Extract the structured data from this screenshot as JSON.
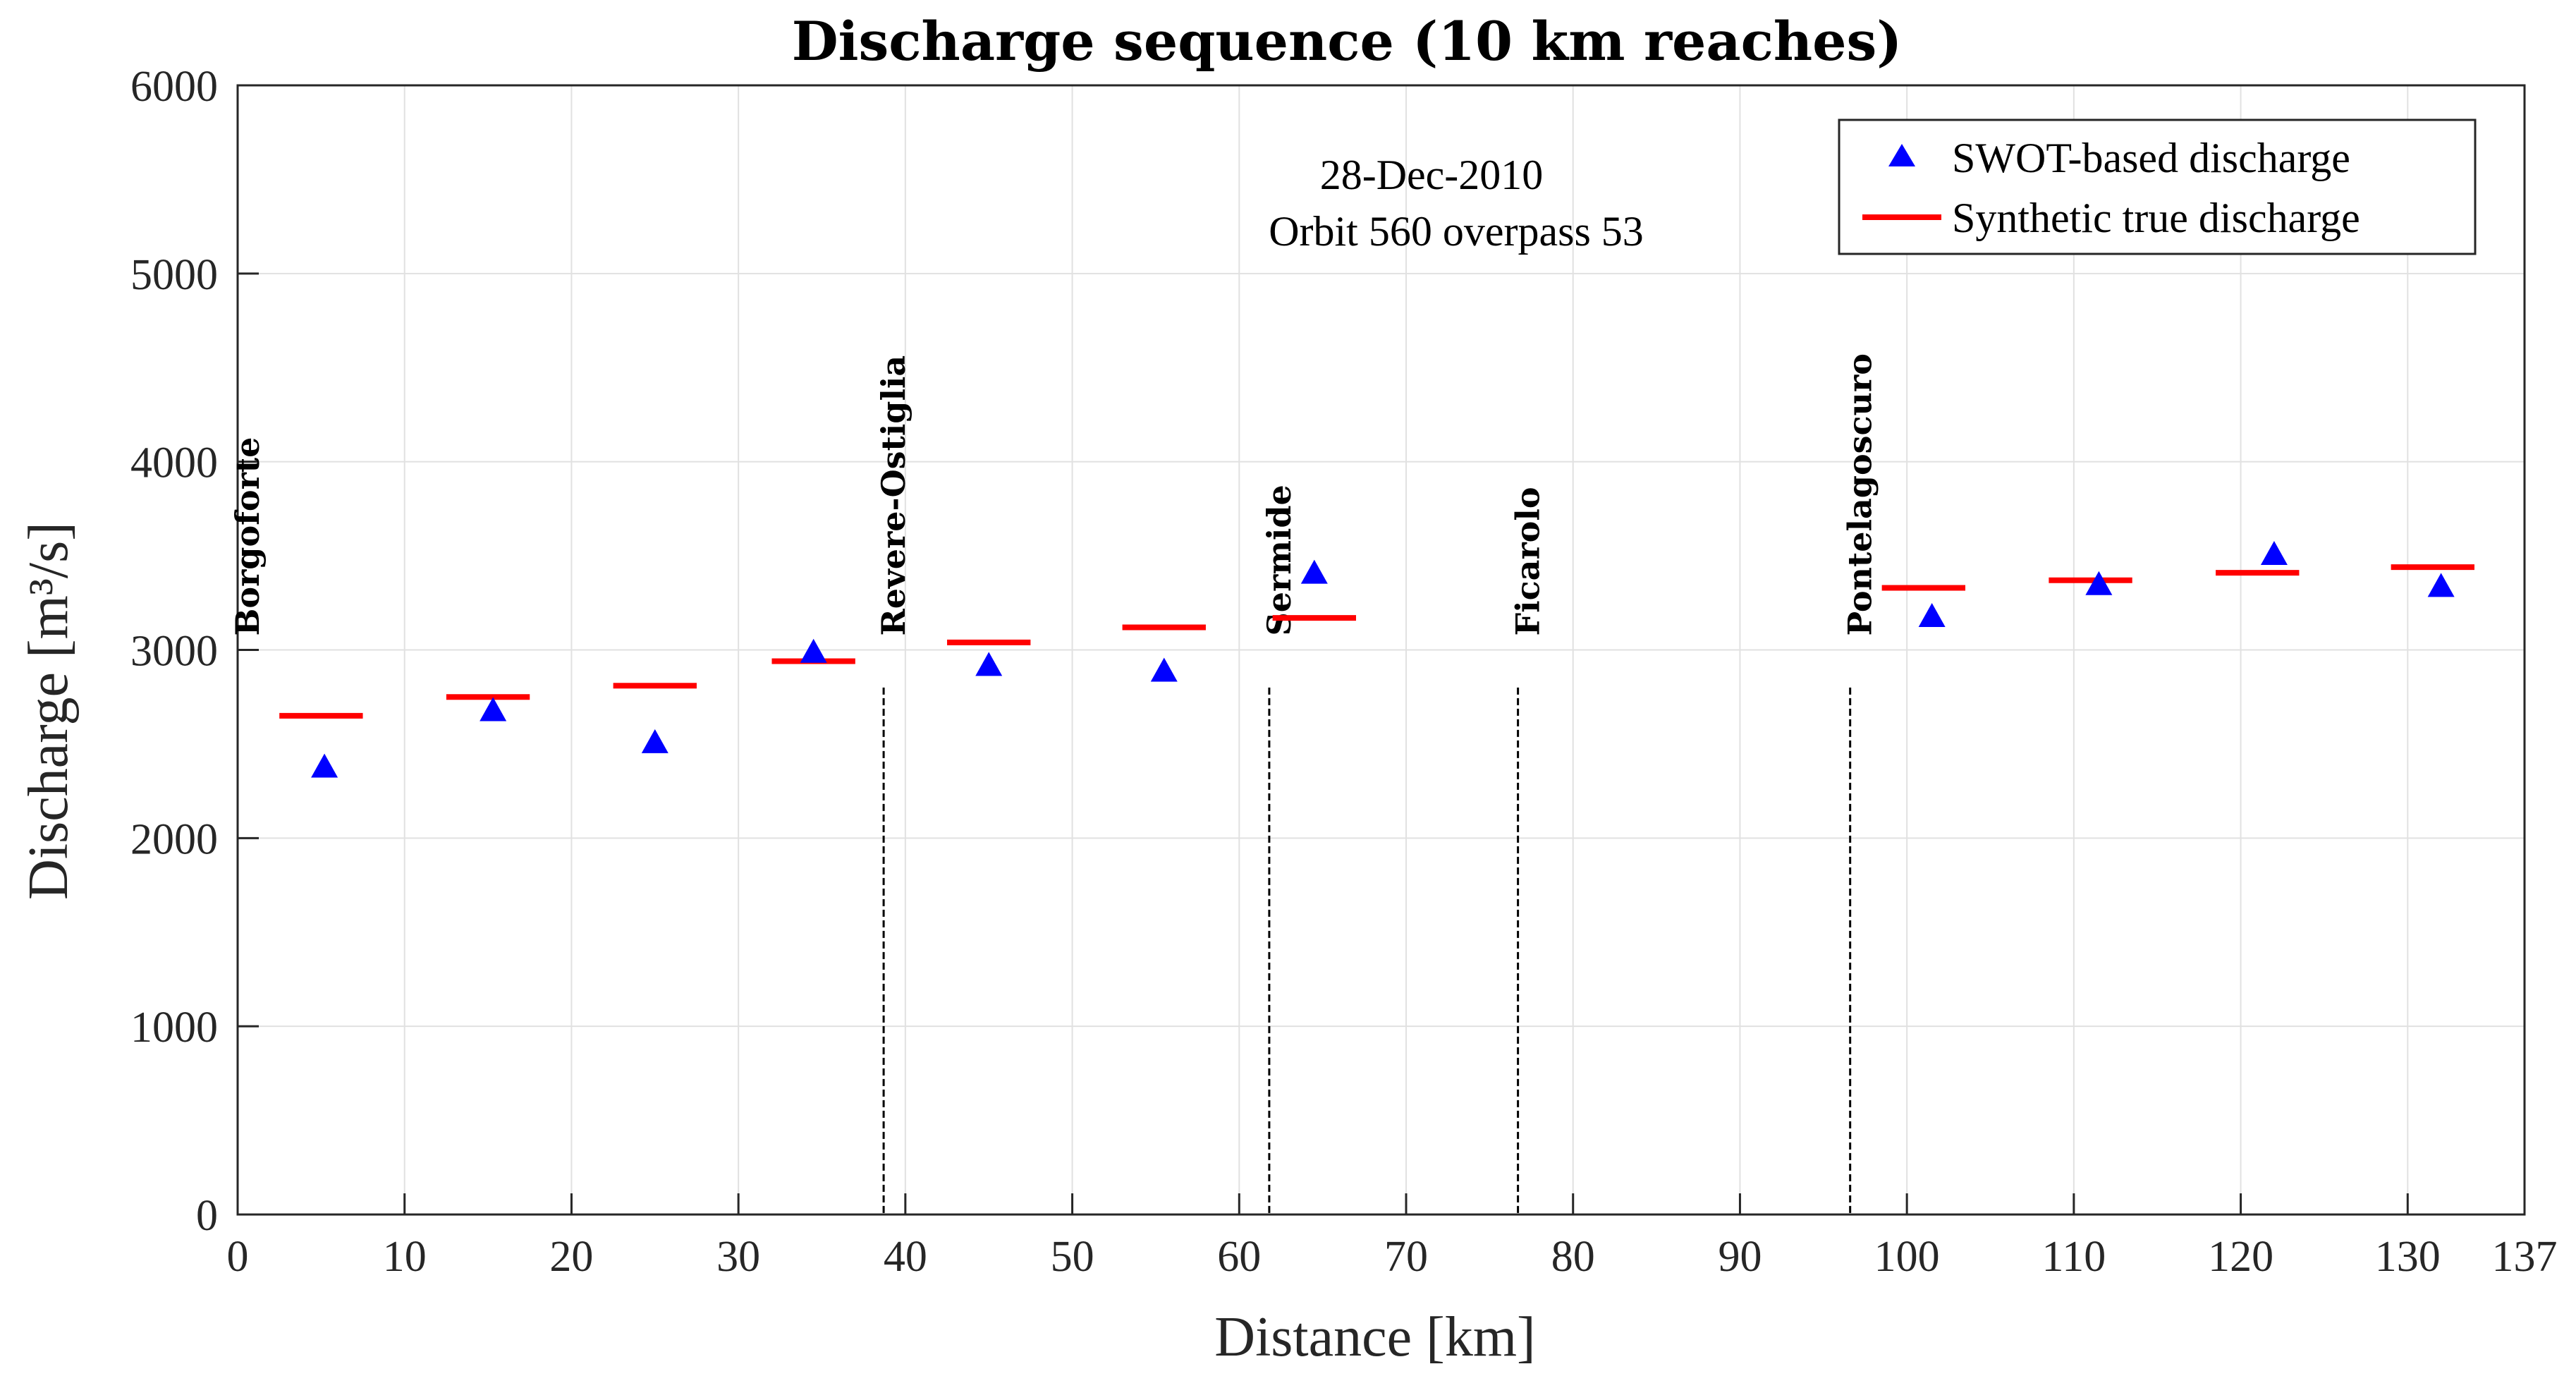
{
  "chart_data": {
    "type": "scatter",
    "title": "Discharge sequence (10 km reaches)",
    "xlabel": "Distance [km]",
    "ylabel": "Discharge [m³/s]",
    "xlim": [
      0,
      137
    ],
    "ylim": [
      0,
      6000
    ],
    "xticks": [
      0,
      10,
      20,
      30,
      40,
      50,
      60,
      70,
      80,
      90,
      100,
      110,
      120,
      130,
      137
    ],
    "yticks": [
      0,
      1000,
      2000,
      3000,
      4000,
      5000,
      6000
    ],
    "grid": true,
    "annotation": [
      "28-Dec-2010",
      "Orbit 560 overpass 53"
    ],
    "legend_position": "top-right",
    "series": [
      {
        "name": "SWOT-based discharge",
        "marker": "triangle",
        "color": "#0000ff",
        "x": [
          5.2,
          15.3,
          25.0,
          34.5,
          45.0,
          55.5,
          64.5,
          101.5,
          111.5,
          122.0,
          132.0
        ],
        "y": [
          2370,
          2670,
          2500,
          2980,
          2910,
          2880,
          3400,
          3170,
          3340,
          3500,
          3330
        ]
      },
      {
        "name": "Synthetic true discharge",
        "marker": "segment",
        "color": "#ff0000",
        "x_start": [
          2.5,
          12.5,
          22.5,
          32.0,
          42.5,
          53.0,
          62.0,
          98.5,
          108.5,
          118.5,
          129.0
        ],
        "x_end": [
          7.5,
          17.5,
          27.5,
          37.0,
          47.5,
          58.0,
          67.0,
          103.5,
          113.5,
          123.5,
          134.0
        ],
        "y": [
          2650,
          2750,
          2810,
          2940,
          3040,
          3120,
          3170,
          3330,
          3370,
          3410,
          3440
        ]
      }
    ],
    "stations": [
      {
        "name": "Borgoforte",
        "x": 0.0,
        "line": false
      },
      {
        "name": "Revere-Ostiglia",
        "x": 38.7,
        "line": true
      },
      {
        "name": "Sermide",
        "x": 61.8,
        "line": true
      },
      {
        "name": "Ficarolo",
        "x": 76.7,
        "line": true
      },
      {
        "name": "Pontelagoscuro",
        "x": 96.6,
        "line": true
      }
    ],
    "station_line_top": 2800
  }
}
